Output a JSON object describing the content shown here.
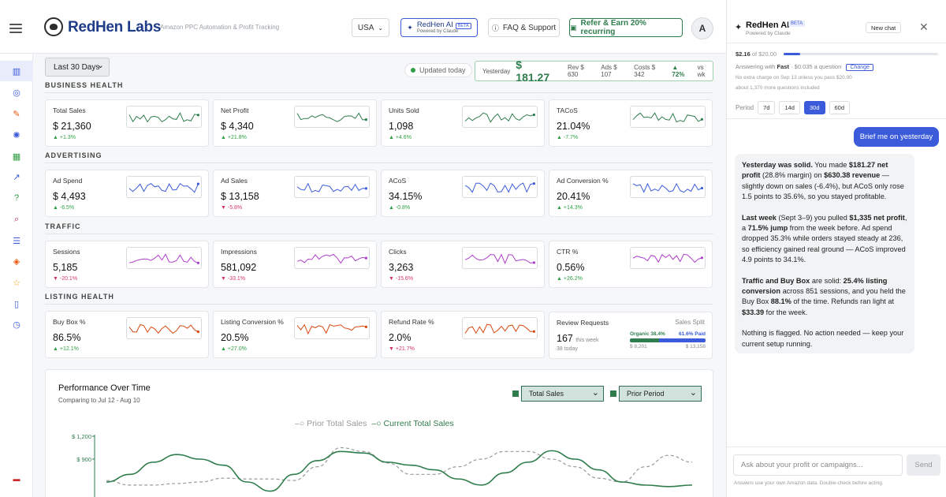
{
  "header": {
    "brand": "RedHen Labs",
    "tagline": "Amazon PPC Automation & Profit Tracking",
    "country": "USA",
    "ai_button": {
      "title": "RedHen AI",
      "badge": "BETA",
      "subtitle": "Powered by Claude"
    },
    "faq": "FAQ & Support",
    "refer": "Refer & Earn 20% recurring",
    "avatar": "A"
  },
  "sidebar": {
    "icons": [
      "chart-icon",
      "target-icon",
      "pen-icon",
      "sparkle-icon",
      "grid-icon",
      "trend-icon",
      "help-icon",
      "search-icon",
      "list-icon",
      "box-icon",
      "star-icon",
      "book-icon",
      "clock-icon",
      "flag-icon"
    ]
  },
  "toolbar": {
    "range": "Last 30 Days",
    "updated": "Updated today",
    "yesterday": {
      "label": "Yesterday",
      "profit": "$ 181.27",
      "rev": "Rev $ 630",
      "ads": "Ads $ 107",
      "costs": "Costs $ 342",
      "change": "▲ 72%",
      "vs": "vs wk"
    }
  },
  "sections": [
    {
      "title": "BUSINESS HEALTH",
      "cards": [
        {
          "label": "Total Sales",
          "value": "$ 21,360",
          "change": "▲ +1.3%",
          "dir": "up",
          "color": "#2f7d4d"
        },
        {
          "label": "Net Profit",
          "value": "$ 4,340",
          "change": "▲ +21.8%",
          "dir": "up",
          "color": "#2f7d4d"
        },
        {
          "label": "Units Sold",
          "value": "1,098",
          "change": "▲ +4.6%",
          "dir": "up",
          "color": "#2f7d4d"
        },
        {
          "label": "TACoS",
          "value": "21.04%",
          "change": "▲ -7.7%",
          "dir": "up",
          "color": "#2f7d4d"
        }
      ]
    },
    {
      "title": "ADVERTISING",
      "cards": [
        {
          "label": "Ad Spend",
          "value": "$ 4,493",
          "change": "▲ -6.5%",
          "dir": "up",
          "color": "#3b5bdb"
        },
        {
          "label": "Ad Sales",
          "value": "$ 13,158",
          "change": "▼ -5.8%",
          "dir": "down",
          "color": "#3b5bdb"
        },
        {
          "label": "ACoS",
          "value": "34.15%",
          "change": "▲ -0.8%",
          "dir": "up",
          "color": "#3b5bdb"
        },
        {
          "label": "Ad Conversion %",
          "value": "20.41%",
          "change": "▲ +14.3%",
          "dir": "up",
          "color": "#3b5bdb"
        }
      ]
    },
    {
      "title": "TRAFFIC",
      "cards": [
        {
          "label": "Sessions",
          "value": "5,185",
          "change": "▼ -20.1%",
          "dir": "down",
          "color": "#ae3ec9"
        },
        {
          "label": "Impressions",
          "value": "581,092",
          "change": "▼ -33.1%",
          "dir": "down",
          "color": "#ae3ec9"
        },
        {
          "label": "Clicks",
          "value": "3,263",
          "change": "▼ -15.6%",
          "dir": "down",
          "color": "#ae3ec9"
        },
        {
          "label": "CTR %",
          "value": "0.56%",
          "change": "▲ +26.2%",
          "dir": "up",
          "color": "#ae3ec9"
        }
      ]
    },
    {
      "title": "LISTING HEALTH",
      "cards": [
        {
          "label": "Buy Box %",
          "value": "86.5%",
          "change": "▲ +12.1%",
          "dir": "up",
          "color": "#d9480f"
        },
        {
          "label": "Listing Conversion %",
          "value": "20.5%",
          "change": "▲ +27.0%",
          "dir": "up",
          "color": "#d9480f"
        },
        {
          "label": "Refund Rate %",
          "value": "2.0%",
          "change": "▼ +21.7%",
          "dir": "down",
          "color": "#d9480f"
        }
      ]
    }
  ],
  "review_card": {
    "label": "Review Requests",
    "extra": "Sales Split",
    "value": "167",
    "value_sub": "this week",
    "today": "38 today",
    "organic_label": "Organic 38.4%",
    "paid_label": "61.6% Paid",
    "organic_share": 38.4,
    "organic_amount": "$ 8,201",
    "paid_amount": "$ 13,158"
  },
  "performance": {
    "title": "Performance Over Time",
    "comparing": "Comparing to Jul 12 - Aug 10",
    "metric_select": "Total Sales",
    "compare_select": "Prior Period",
    "legend_prior": "Prior Total Sales",
    "legend_current": "Current Total Sales",
    "y_ticks": [
      "$ 1,200",
      "$ 900"
    ]
  },
  "chart_data": {
    "type": "line",
    "title": "Performance Over Time",
    "ylabel": "",
    "y_ticks": [
      1200,
      900
    ],
    "series": [
      {
        "name": "Prior Total Sales",
        "style": "dashed",
        "color": "#999999",
        "values": [
          620,
          560,
          560,
          580,
          600,
          650,
          640,
          640,
          620,
          800,
          1050,
          1000,
          850,
          700,
          700,
          800,
          900,
          1000,
          1000,
          900,
          800,
          650,
          600,
          800,
          950,
          860
        ]
      },
      {
        "name": "Current Total Sales",
        "style": "solid",
        "color": "#2f7d4d",
        "values": [
          600,
          700,
          860,
          960,
          900,
          820,
          600,
          480,
          700,
          880,
          1000,
          980,
          860,
          820,
          760,
          640,
          560,
          720,
          860,
          1010,
          900,
          760,
          600,
          560,
          540,
          560
        ]
      }
    ]
  },
  "panel": {
    "title": "RedHen AI",
    "badge": "BETA",
    "subtitle": "Powered by Claude",
    "new_chat": "New chat",
    "budget_used": "$2.16",
    "budget_total": "of $20.00",
    "budget_fraction": 0.108,
    "answering_prefix": "Answering with",
    "answering_mode": "Fast",
    "answering_cost": "· $0.035 a question",
    "change": "Change",
    "note1": "No extra charge on Sep 13 unless you pass $20.00",
    "note2": "about 1,370 more questions included",
    "period_label": "Period",
    "periods": [
      "7d",
      "14d",
      "30d",
      "60d"
    ],
    "user_message": "Brief me on yesterday",
    "input_placeholder": "Ask about your profit or campaigns...",
    "send": "Send",
    "disclaimer": "Answers use your own Amazon data. Double-check before acting."
  },
  "ai_message": [
    [
      {
        "b": "Yesterday was solid."
      },
      {
        "t": " You made "
      },
      {
        "b": "$181.27 net profit"
      },
      {
        "t": " (28.8% margin) on "
      },
      {
        "b": "$630.38 revenue"
      },
      {
        "t": " — slightly down on sales (-6.4%), but ACoS only rose 1.5 points to 35.6%, so you stayed profitable."
      }
    ],
    [
      {
        "b": "Last week"
      },
      {
        "t": " (Sept 3–9) you pulled "
      },
      {
        "b": "$1,335 net profit"
      },
      {
        "t": ", a "
      },
      {
        "b": "71.5% jump"
      },
      {
        "t": " from the week before. Ad spend dropped 35.3% while orders stayed steady at 236, so efficiency gained real ground — ACoS improved 4.9 points to 34.1%."
      }
    ],
    [
      {
        "b": "Traffic and Buy Box"
      },
      {
        "t": " are solid: "
      },
      {
        "b": "25.4% listing conversion"
      },
      {
        "t": " across 851 sessions, and you held the Buy Box "
      },
      {
        "b": "88.1%"
      },
      {
        "t": " of the time. Refunds ran light at "
      },
      {
        "b": "$33.39"
      },
      {
        "t": " for the week."
      }
    ],
    [
      {
        "t": "Nothing is flagged. No action needed — keep your current setup running."
      }
    ]
  ]
}
